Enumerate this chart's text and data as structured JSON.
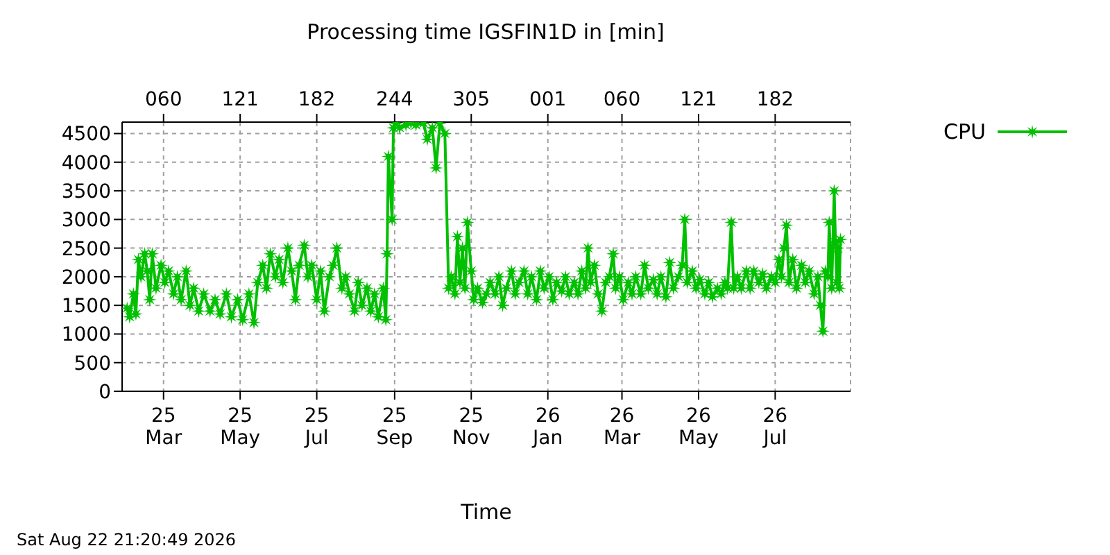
{
  "chart_data": {
    "type": "line",
    "title": "Processing time IGSFIN1D in [min]",
    "xlabel": "Time",
    "annotations": [
      "Sat Aug 22 21:20:49 2026"
    ],
    "x": [
      "2025-01-31",
      "2025-02-02",
      "2025-02-05",
      "2025-02-07",
      "2025-02-09",
      "2025-02-11",
      "2025-02-14",
      "2025-02-16",
      "2025-02-18",
      "2025-02-20",
      "2025-02-23",
      "2025-02-27",
      "2025-03-02",
      "2025-03-05",
      "2025-03-09",
      "2025-03-12",
      "2025-03-15",
      "2025-03-19",
      "2025-03-22",
      "2025-03-25",
      "2025-03-29",
      "2025-04-02",
      "2025-04-07",
      "2025-04-11",
      "2025-04-15",
      "2025-04-20",
      "2025-04-24",
      "2025-04-29",
      "2025-05-03",
      "2025-05-08",
      "2025-05-12",
      "2025-05-15",
      "2025-05-19",
      "2025-05-22",
      "2025-05-25",
      "2025-05-29",
      "2025-06-01",
      "2025-06-04",
      "2025-06-08",
      "2025-06-11",
      "2025-06-14",
      "2025-06-17",
      "2025-06-21",
      "2025-06-24",
      "2025-06-27",
      "2025-07-01",
      "2025-07-04",
      "2025-07-07",
      "2025-07-11",
      "2025-07-14",
      "2025-07-17",
      "2025-07-21",
      "2025-07-24",
      "2025-07-27",
      "2025-07-31",
      "2025-08-03",
      "2025-08-06",
      "2025-08-10",
      "2025-08-13",
      "2025-08-16",
      "2025-08-19",
      "2025-08-23",
      "2025-08-25",
      "2025-08-26",
      "2025-08-27",
      "2025-08-30",
      "2025-08-31",
      "2025-09-02",
      "2025-09-05",
      "2025-09-10",
      "2025-09-14",
      "2025-09-18",
      "2025-09-24",
      "2025-09-27",
      "2025-10-01",
      "2025-10-04",
      "2025-10-07",
      "2025-10-11",
      "2025-10-14",
      "2025-10-16",
      "2025-10-19",
      "2025-10-21",
      "2025-10-23",
      "2025-10-25",
      "2025-10-27",
      "2025-10-29",
      "2025-11-01",
      "2025-11-03",
      "2025-11-06",
      "2025-11-10",
      "2025-11-13",
      "2025-11-16",
      "2025-11-20",
      "2025-11-23",
      "2025-11-26",
      "2025-11-29",
      "2025-12-03",
      "2025-12-06",
      "2025-12-09",
      "2025-12-13",
      "2025-12-16",
      "2025-12-19",
      "2025-12-23",
      "2025-12-26",
      "2025-12-29",
      "2026-01-02",
      "2026-01-05",
      "2026-01-08",
      "2026-01-12",
      "2026-01-15",
      "2026-01-18",
      "2026-01-22",
      "2026-01-25",
      "2026-01-28",
      "2026-01-31",
      "2026-02-02",
      "2026-02-04",
      "2026-02-07",
      "2026-02-10",
      "2026-02-13",
      "2026-02-16",
      "2026-02-19",
      "2026-02-22",
      "2026-02-24",
      "2026-02-27",
      "2026-03-02",
      "2026-03-06",
      "2026-03-09",
      "2026-03-12",
      "2026-03-16",
      "2026-03-19",
      "2026-03-22",
      "2026-03-26",
      "2026-03-29",
      "2026-04-01",
      "2026-04-05",
      "2026-04-08",
      "2026-04-11",
      "2026-04-15",
      "2026-04-18",
      "2026-04-20",
      "2026-04-22",
      "2026-04-26",
      "2026-04-29",
      "2026-05-02",
      "2026-05-06",
      "2026-05-09",
      "2026-05-12",
      "2026-05-16",
      "2026-05-19",
      "2026-05-22",
      "2026-05-24",
      "2026-05-27",
      "2026-05-29",
      "2026-06-01",
      "2026-06-04",
      "2026-06-08",
      "2026-06-11",
      "2026-06-14",
      "2026-06-18",
      "2026-06-21",
      "2026-06-24",
      "2026-06-28",
      "2026-07-01",
      "2026-07-04",
      "2026-07-06",
      "2026-07-08",
      "2026-07-10",
      "2026-07-12",
      "2026-07-15",
      "2026-07-18",
      "2026-07-22",
      "2026-07-25",
      "2026-07-28",
      "2026-08-01",
      "2026-08-04",
      "2026-08-06",
      "2026-08-08",
      "2026-08-10",
      "2026-08-12",
      "2026-08-13",
      "2026-08-15",
      "2026-08-17",
      "2026-08-18",
      "2026-08-19",
      "2026-08-20",
      "2026-08-21",
      "2026-08-22"
    ],
    "series": [
      {
        "name": "CPU",
        "color": "#00c000",
        "values": [
          1450,
          1300,
          1700,
          1350,
          2300,
          2000,
          2400,
          2100,
          1600,
          2400,
          1800,
          2200,
          1900,
          2100,
          1700,
          2000,
          1600,
          2100,
          1500,
          1800,
          1400,
          1700,
          1400,
          1600,
          1350,
          1700,
          1300,
          1600,
          1250,
          1700,
          1200,
          1900,
          2200,
          1800,
          2400,
          2000,
          2300,
          1900,
          2500,
          2100,
          1600,
          2200,
          2550,
          2000,
          2200,
          1600,
          2100,
          1400,
          2000,
          2200,
          2500,
          1800,
          2000,
          1700,
          1400,
          1900,
          1500,
          1800,
          1400,
          1700,
          1300,
          1800,
          1250,
          2400,
          4100,
          3000,
          4600,
          4680,
          4600,
          4650,
          4680,
          4650,
          4680,
          4400,
          4600,
          3900,
          4680,
          4500,
          1800,
          2000,
          1700,
          2700,
          1900,
          2500,
          1800,
          2950,
          2100,
          1600,
          1800,
          1550,
          1700,
          1900,
          1700,
          2000,
          1500,
          1800,
          2100,
          1700,
          1900,
          2100,
          1700,
          2000,
          1600,
          2100,
          1800,
          2000,
          1600,
          1900,
          1750,
          2000,
          1700,
          1900,
          1700,
          2100,
          1800,
          2500,
          1900,
          2200,
          1700,
          1400,
          1900,
          2000,
          2400,
          1800,
          2000,
          1600,
          1900,
          1700,
          2000,
          1700,
          2200,
          1800,
          1950,
          1700,
          2000,
          1650,
          2250,
          1800,
          2000,
          2200,
          3000,
          1900,
          2100,
          1800,
          1950,
          1700,
          1900,
          1650,
          1800,
          1700,
          1900,
          1800,
          2950,
          1800,
          2000,
          1800,
          2100,
          1800,
          2100,
          1900,
          2050,
          1800,
          2000,
          1900,
          2300,
          2000,
          2500,
          2900,
          1900,
          2300,
          1800,
          2200,
          1900,
          2100,
          1700,
          2000,
          1500,
          1050,
          2100,
          2000,
          2950,
          1800,
          3500,
          2600,
          1900,
          2500,
          1800,
          2650
        ]
      }
    ],
    "xlim": [
      "2025-01-27",
      "2026-08-30"
    ],
    "xticks": [
      {
        "value": "2025-03-01",
        "label": "25\nMar"
      },
      {
        "value": "2025-05-01",
        "label": "25\nMay"
      },
      {
        "value": "2025-07-01",
        "label": "25\nJul"
      },
      {
        "value": "2025-09-01",
        "label": "25\nSep"
      },
      {
        "value": "2025-11-01",
        "label": "25\nNov"
      },
      {
        "value": "2026-01-01",
        "label": "26\nJan"
      },
      {
        "value": "2026-03-01",
        "label": "26\nMar"
      },
      {
        "value": "2026-05-01",
        "label": "26\nMay"
      },
      {
        "value": "2026-07-01",
        "label": "26\nJul"
      }
    ],
    "x2lim": [
      "2025-01-27",
      "2026-08-30"
    ],
    "x2ticks": [
      {
        "value": "2025-03-01",
        "label": "060"
      },
      {
        "value": "2025-05-01",
        "label": "121"
      },
      {
        "value": "2025-07-01",
        "label": "182"
      },
      {
        "value": "2025-09-01",
        "label": "244"
      },
      {
        "value": "2025-11-01",
        "label": "305"
      },
      {
        "value": "2026-01-01",
        "label": "001"
      },
      {
        "value": "2026-03-01",
        "label": "060"
      },
      {
        "value": "2026-05-01",
        "label": "121"
      },
      {
        "value": "2026-07-01",
        "label": "182"
      }
    ],
    "ylim": [
      0,
      4700
    ],
    "yticks": [
      0,
      500,
      1000,
      1500,
      2000,
      2500,
      3000,
      3500,
      4000,
      4500
    ],
    "grid": true,
    "legend": "top right",
    "marker": "star",
    "line_style": "solid"
  }
}
